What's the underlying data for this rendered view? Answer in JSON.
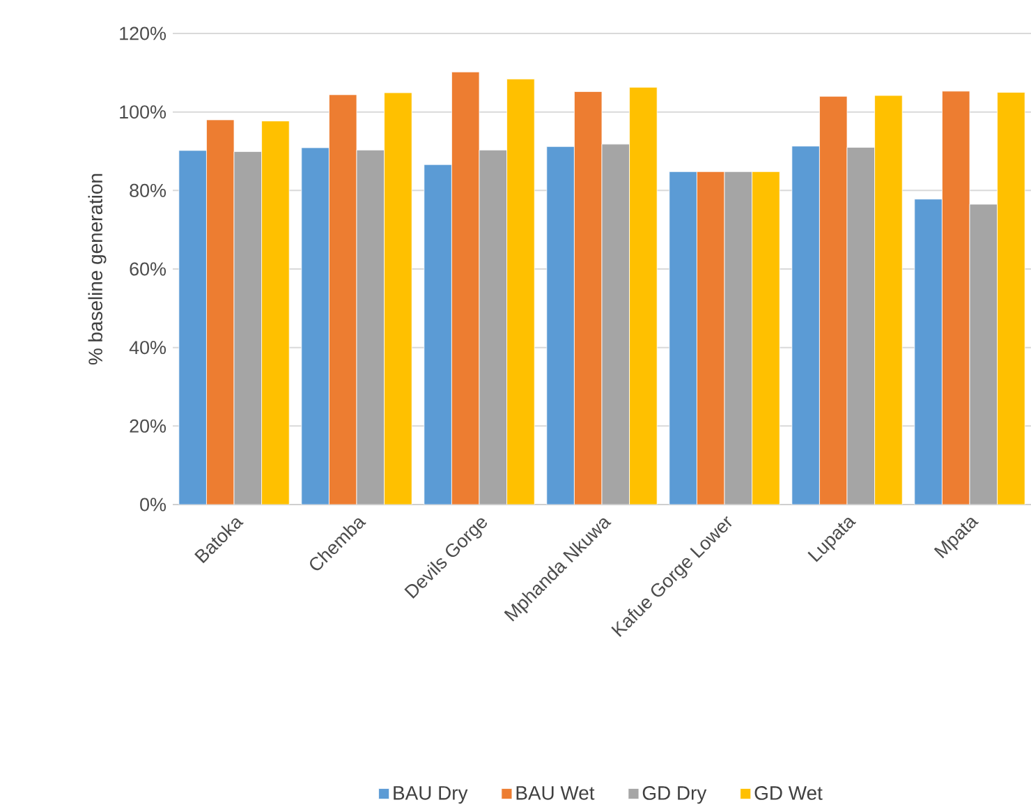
{
  "chart_data": {
    "type": "bar",
    "ylabel": "% baseline generation",
    "categories": [
      "Batoka",
      "Chemba",
      "Devils Gorge",
      "Mphanda Nkuwa",
      "Kafue Gorge Lower",
      "Lupata",
      "Mpata"
    ],
    "series": [
      {
        "name": "BAU Dry",
        "color": "#5b9bd5",
        "values": [
          90.2,
          90.9,
          86.6,
          91.2,
          84.8,
          91.3,
          77.8
        ]
      },
      {
        "name": "BAU Wet",
        "color": "#ed7d31",
        "values": [
          98.0,
          104.4,
          110.2,
          105.2,
          84.8,
          104.0,
          105.3
        ]
      },
      {
        "name": "GD Dry",
        "color": "#a5a5a5",
        "values": [
          89.9,
          90.3,
          90.3,
          91.8,
          84.8,
          91.0,
          76.5
        ]
      },
      {
        "name": "GD Wet",
        "color": "#ffc000",
        "values": [
          97.7,
          104.9,
          108.4,
          106.3,
          84.8,
          104.2,
          105.0
        ]
      }
    ],
    "ylim": [
      0,
      120
    ],
    "yticks": [
      {
        "value": 0,
        "label": "0%"
      },
      {
        "value": 20,
        "label": "20%"
      },
      {
        "value": 40,
        "label": "40%"
      },
      {
        "value": 60,
        "label": "60%"
      },
      {
        "value": 80,
        "label": "80%"
      },
      {
        "value": 100,
        "label": "100%"
      },
      {
        "value": 120,
        "label": "120%"
      }
    ],
    "grid": "y",
    "legend": "bottom"
  }
}
